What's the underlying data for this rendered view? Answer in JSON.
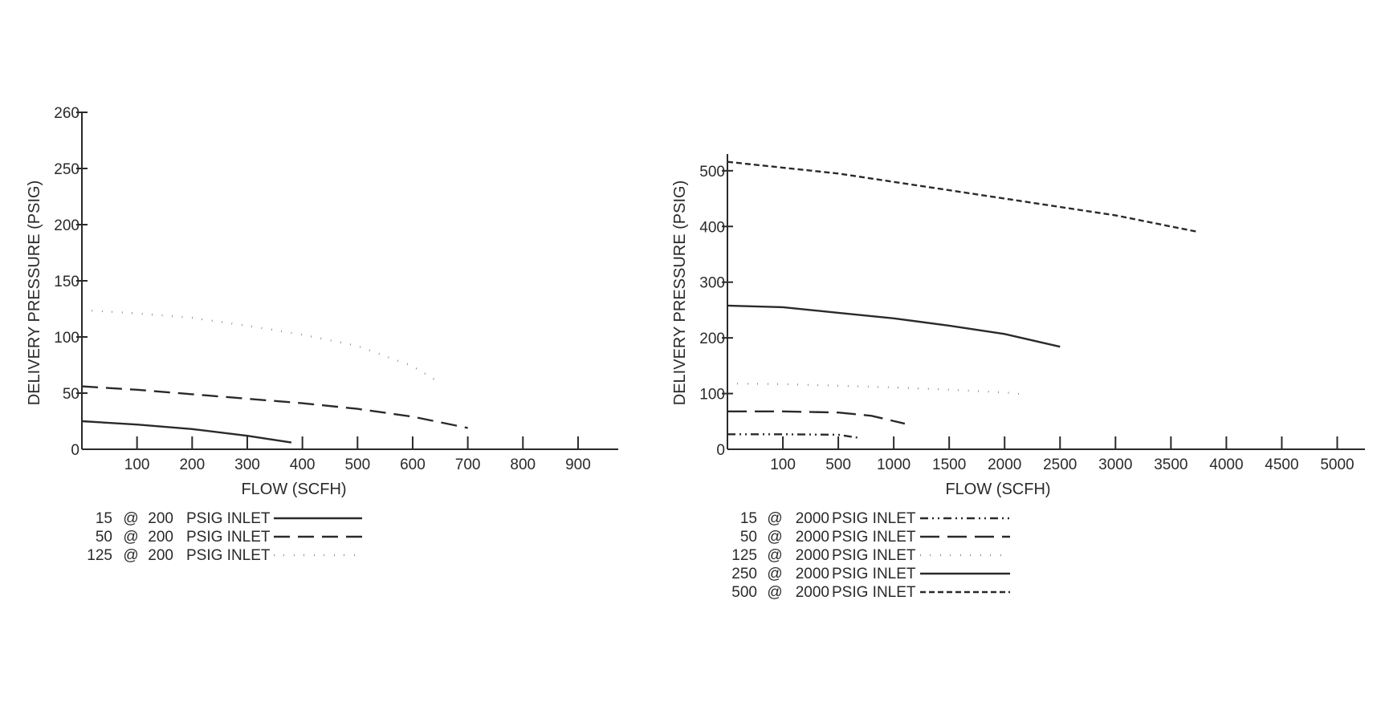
{
  "chart_data": [
    {
      "type": "line",
      "xlabel": "FLOW (SCFH)",
      "ylabel": "DELIVERY PRESSURE (PSIG)",
      "xlim": [
        0,
        970
      ],
      "x_ticks": [
        100,
        200,
        300,
        400,
        500,
        600,
        700,
        800,
        900
      ],
      "y_ticks": [
        0,
        50,
        100,
        150,
        200,
        250,
        260
      ],
      "y_tick_labels": [
        "0",
        "50",
        "100",
        "150",
        "200",
        "250",
        "260"
      ],
      "y_scale_points": [
        [
          0,
          0
        ],
        [
          50,
          50
        ],
        [
          100,
          100
        ],
        [
          150,
          150
        ],
        [
          200,
          200
        ],
        [
          250,
          250
        ],
        [
          260,
          300
        ]
      ],
      "grid": false,
      "legend_position": "bottom-left",
      "series": [
        {
          "name": "15 @ 200 PSIG INLET",
          "legend_parts": [
            "15",
            "@",
            "200",
            "PSIG INLET"
          ],
          "style": "solid",
          "x": [
            0,
            100,
            200,
            300,
            380
          ],
          "y": [
            25,
            22,
            18,
            12,
            6
          ]
        },
        {
          "name": "50 @ 200 PSIG INLET",
          "legend_parts": [
            "50",
            "@",
            "200",
            "PSIG INLET"
          ],
          "style": "dashed",
          "x": [
            0,
            100,
            200,
            300,
            400,
            500,
            600,
            700
          ],
          "y": [
            56,
            53,
            49,
            45,
            41,
            36,
            29,
            19
          ]
        },
        {
          "name": "125 @ 200 PSIG INLET",
          "legend_parts": [
            "125",
            "@",
            "200",
            "PSIG INLET"
          ],
          "style": "dotted",
          "x": [
            0,
            100,
            200,
            300,
            400,
            500,
            600,
            650
          ],
          "y": [
            124,
            121,
            117,
            110,
            102,
            92,
            74,
            59
          ]
        }
      ]
    },
    {
      "type": "line",
      "xlabel": "FLOW (SCFH)",
      "ylabel": "DELIVERY PRESSURE (PSIG)",
      "x_ticks": [
        100,
        500,
        1000,
        1500,
        2000,
        2500,
        3000,
        3500,
        4000,
        4500,
        5000
      ],
      "x_scale_points": [
        [
          0,
          0
        ],
        [
          100,
          50
        ],
        [
          500,
          100
        ],
        [
          1000,
          150
        ],
        [
          1500,
          200
        ],
        [
          2000,
          250
        ],
        [
          2500,
          300
        ],
        [
          3000,
          350
        ],
        [
          3500,
          400
        ],
        [
          4000,
          450
        ],
        [
          4500,
          500
        ],
        [
          5000,
          550
        ],
        [
          5250,
          575
        ]
      ],
      "ylim": [
        0,
        530
      ],
      "y_ticks": [
        0,
        100,
        200,
        300,
        400,
        500
      ],
      "grid": false,
      "legend_position": "bottom-left",
      "series": [
        {
          "name": "15 @ 2000 PSIG INLET",
          "legend_parts": [
            "15",
            "@",
            "2000",
            "PSIG INLET"
          ],
          "style": "dashdotdot",
          "x": [
            0,
            100,
            500,
            700
          ],
          "y": [
            27,
            27,
            26,
            20
          ]
        },
        {
          "name": "50 @ 2000 PSIG INLET",
          "legend_parts": [
            "50",
            "@",
            "2000",
            "PSIG INLET"
          ],
          "style": "longdash",
          "x": [
            0,
            100,
            500,
            800,
            1100
          ],
          "y": [
            68,
            68,
            66,
            60,
            46
          ]
        },
        {
          "name": "125 @ 2000 PSIG INLET",
          "legend_parts": [
            "125",
            "@",
            "2000",
            "PSIG INLET"
          ],
          "style": "dotted",
          "x": [
            0,
            100,
            500,
            1000,
            1500,
            2000,
            2200
          ],
          "y": [
            118,
            117,
            114,
            111,
            107,
            102,
            98
          ]
        },
        {
          "name": "250 @ 2000 PSIG INLET",
          "legend_parts": [
            "250",
            "@",
            "2000",
            "PSIG INLET"
          ],
          "style": "solid",
          "x": [
            0,
            100,
            500,
            1000,
            1500,
            2000,
            2500
          ],
          "y": [
            258,
            255,
            245,
            235,
            222,
            207,
            184
          ]
        },
        {
          "name": "500 @ 2000 PSIG INLET",
          "legend_parts": [
            "500",
            "@",
            "2000",
            "PSIG INLET"
          ],
          "style": "shortdash",
          "x": [
            0,
            500,
            1000,
            1500,
            2000,
            2500,
            3000,
            3500,
            3750
          ],
          "y": [
            516,
            495,
            480,
            465,
            450,
            435,
            420,
            400,
            390
          ]
        }
      ]
    }
  ]
}
